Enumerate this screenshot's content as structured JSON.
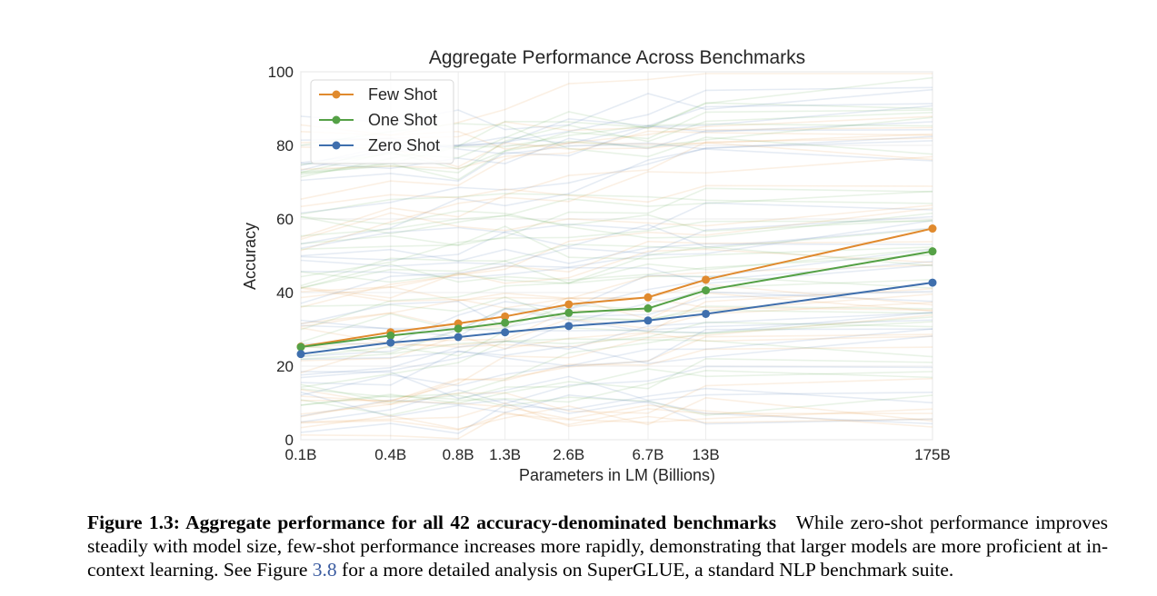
{
  "chart_data": {
    "type": "line",
    "title": "Aggregate Performance Across Benchmarks",
    "xlabel": "Parameters in LM (Billions)",
    "ylabel": "Accuracy",
    "x": [
      "0.1B",
      "0.4B",
      "0.8B",
      "1.3B",
      "2.6B",
      "6.7B",
      "13B",
      "175B"
    ],
    "x_values": [
      0.125,
      0.35,
      0.76,
      1.3,
      2.7,
      6.7,
      13,
      175
    ],
    "x_scale": "log",
    "ylim": [
      0,
      100
    ],
    "yticks": [
      "0",
      "20",
      "40",
      "60",
      "80",
      "100"
    ],
    "grid": true,
    "legend_position": "top-left",
    "series": [
      {
        "name": "Few Shot",
        "color": "#e08a2e",
        "values": [
          25.3,
          29.2,
          31.6,
          33.5,
          36.8,
          38.7,
          43.5,
          57.4
        ]
      },
      {
        "name": "One Shot",
        "color": "#55a146",
        "values": [
          25.2,
          28.3,
          30.2,
          31.8,
          34.5,
          35.7,
          40.6,
          51.2
        ]
      },
      {
        "name": "Zero Shot",
        "color": "#3f6fad",
        "values": [
          23.3,
          26.4,
          27.9,
          29.2,
          30.9,
          32.4,
          34.2,
          42.7
        ]
      }
    ],
    "background_lines_note": "faint per-benchmark lines in orange, green and blue"
  },
  "caption": {
    "heading": "Figure 1.3: Aggregate performance for all 42 accuracy-denominated benchmarks",
    "text_before_ref": "While zero-shot performance improves steadily with model size, few-shot performance increases more rapidly, demonstrating that larger models are more proficient at in-context learning. See Figure",
    "ref": "3.8",
    "text_after_ref": "for a more detailed analysis on SuperGLUE, a standard NLP benchmark suite."
  }
}
